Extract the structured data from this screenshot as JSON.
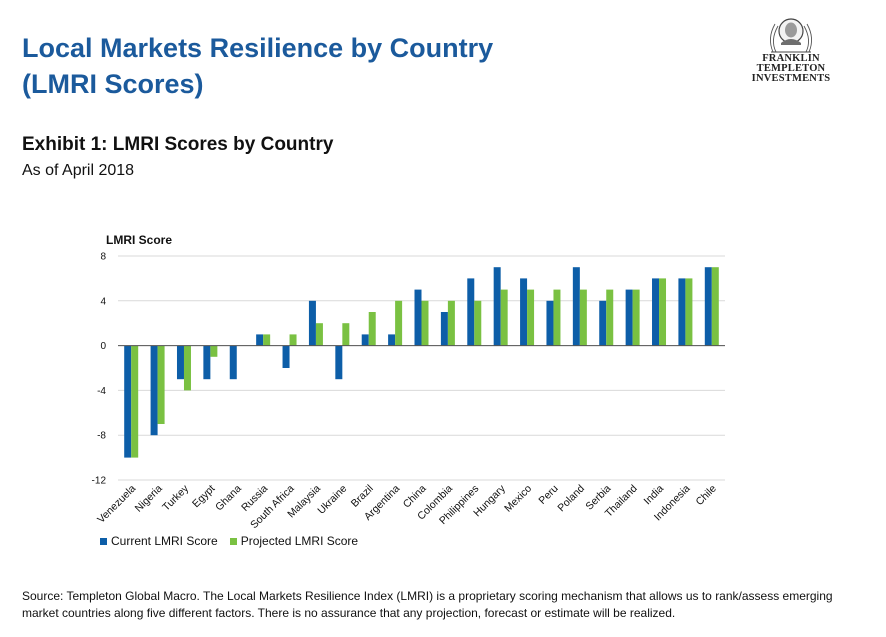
{
  "header": {
    "title_line1": "Local Markets Resilience by Country",
    "title_line2": "(LMRI Scores)"
  },
  "logo": {
    "line1": "FRANKLIN TEMPLETON",
    "line2": "INVESTMENTS",
    "icon": "franklin-portrait-icon"
  },
  "exhibit": {
    "title": "Exhibit 1: LMRI Scores by Country",
    "subtitle": "As of April 2018"
  },
  "legend": {
    "current": "Current LMRI Score",
    "projected": "Projected LMRI Score"
  },
  "source": "Source: Templeton Global Macro. The Local Markets Resilience Index (LMRI) is a proprietary scoring mechanism that allows us to rank/assess emerging market countries along five different factors. There is no assurance that any projection, forecast or estimate will be realized.",
  "colors": {
    "title": "#1b5a9c",
    "current": "#0d5ea8",
    "projected": "#7ac142",
    "grid": "#d9d9d9"
  },
  "chart_data": {
    "type": "bar",
    "title": "Exhibit 1: LMRI Scores by Country",
    "ylabel": "LMRI Score",
    "xlabel": "",
    "ylim": [
      -12,
      8
    ],
    "yticks": [
      -12,
      -8,
      -4,
      0,
      4,
      8
    ],
    "grid": true,
    "legend_position": "bottom-left",
    "categories": [
      "Venezuela",
      "Nigeria",
      "Turkey",
      "Egypt",
      "Ghana",
      "Russia",
      "South Africa",
      "Malaysia",
      "Ukraine",
      "Brazil",
      "Argentina",
      "China",
      "Colombia",
      "Philippines",
      "Hungary",
      "Mexico",
      "Peru",
      "Poland",
      "Serbia",
      "Thailand",
      "India",
      "Indonesia",
      "Chile"
    ],
    "series": [
      {
        "name": "Current LMRI Score",
        "values": [
          -10,
          -8,
          -3,
          -3,
          -3,
          1,
          -2,
          4,
          -3,
          1,
          1,
          5,
          3,
          6,
          7,
          6,
          4,
          7,
          4,
          5,
          6,
          6,
          7
        ]
      },
      {
        "name": "Projected LMRI Score",
        "values": [
          -10,
          -7,
          -4,
          -1,
          null,
          1,
          1,
          2,
          2,
          3,
          4,
          4,
          4,
          4,
          5,
          5,
          5,
          5,
          5,
          5,
          6,
          6,
          7
        ]
      }
    ]
  }
}
